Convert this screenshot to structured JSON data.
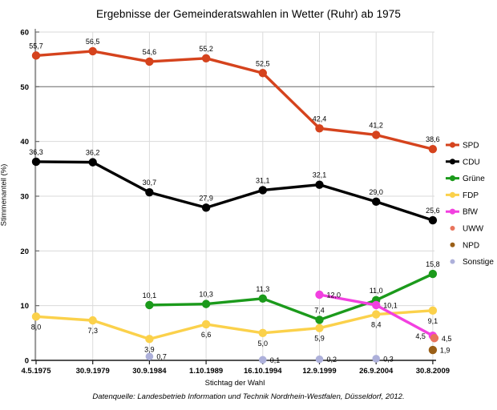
{
  "chart_data": {
    "type": "line",
    "title": "Ergebnisse der Gemeinderatswahlen in Wetter (Ruhr) ab 1975",
    "xlabel": "Stichtag der Wahl",
    "ylabel": "Stimmenanteil (%)",
    "source_note": "Datenquelle: Landesbetrieb Information und Technik Nordrhein-Westfalen, Düsseldorf, 2012.",
    "ylim": [
      0,
      60
    ],
    "yticks": [
      0,
      10,
      20,
      30,
      40,
      50,
      60
    ],
    "grid": {
      "vertical": true,
      "horizontal": true,
      "emphasized_gridline": 50
    },
    "legend_position": "right",
    "decimal_separator": ",",
    "categories": [
      "4.5.1975",
      "30.9.1979",
      "30.9.1984",
      "1.10.1989",
      "16.10.1994",
      "12.9.1999",
      "26.9.2004",
      "30.8.2009"
    ],
    "series": [
      {
        "name": "SPD",
        "color": "#d5431d",
        "marker": "line-dot",
        "label_placement": "above",
        "values": [
          55.7,
          56.5,
          54.6,
          55.2,
          52.5,
          42.4,
          41.2,
          38.6
        ]
      },
      {
        "name": "CDU",
        "color": "#000000",
        "marker": "line-dot",
        "label_placement": "above",
        "values": [
          36.3,
          36.2,
          30.7,
          27.9,
          31.1,
          32.1,
          29.0,
          25.6
        ]
      },
      {
        "name": "Grüne",
        "color": "#1b9a1b",
        "marker": "line-dot",
        "label_placement": "above",
        "values": [
          null,
          null,
          10.1,
          10.3,
          11.3,
          7.4,
          11.0,
          15.8
        ]
      },
      {
        "name": "FDP",
        "color": "#fbd14b",
        "marker": "line-dot",
        "label_placement": "below",
        "values": [
          8.0,
          7.3,
          3.9,
          6.6,
          5.0,
          5.9,
          8.4,
          9.1
        ]
      },
      {
        "name": "BfW",
        "color": "#f240e0",
        "marker": "line-dot",
        "label_placement": "right",
        "label_overrides": {
          "7": "left"
        },
        "values": [
          null,
          null,
          null,
          null,
          null,
          12.0,
          10.1,
          4.5
        ]
      },
      {
        "name": "UWW",
        "color": "#e8745c",
        "marker": "dot",
        "label_placement": "right",
        "point_offset": [
          2,
          3
        ],
        "values": [
          null,
          null,
          null,
          null,
          null,
          null,
          null,
          4.5
        ]
      },
      {
        "name": "NPD",
        "color": "#9a5f17",
        "marker": "dot",
        "label_placement": "right",
        "values": [
          null,
          null,
          null,
          null,
          null,
          null,
          null,
          1.9
        ]
      },
      {
        "name": "Sonstige",
        "color": "#adb0da",
        "marker": "dot",
        "label_placement": "right",
        "values": [
          null,
          null,
          0.7,
          null,
          0.1,
          0.2,
          0.3,
          null
        ]
      }
    ]
  }
}
